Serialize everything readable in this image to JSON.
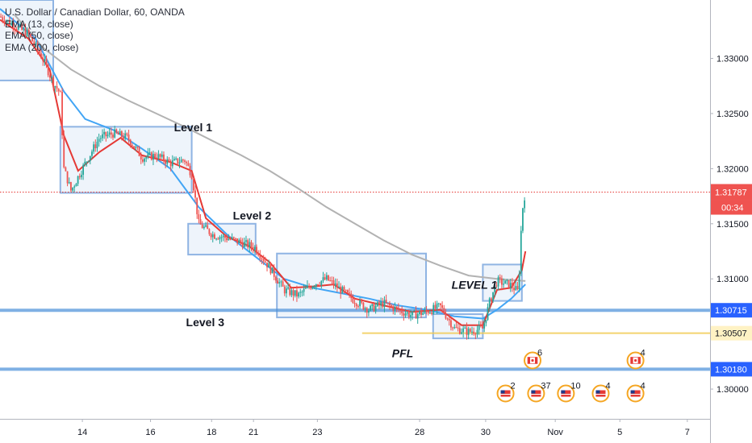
{
  "chart_data": {
    "type": "candlestick",
    "symbol_title": "U.S. Dollar / Canadian Dollar, 60, OANDA",
    "indicators": [
      "EMA (13, close)",
      "EMA (50, close)",
      "EMA (200, close)"
    ],
    "x_tick_labels": [
      "14",
      "16",
      "18",
      "21",
      "23",
      "28",
      "30",
      "Nov",
      "5",
      "7"
    ],
    "y_tick_labels": [
      "1.33000",
      "1.32500",
      "1.32000",
      "1.31500",
      "1.31000",
      "1.30000"
    ],
    "ylim": [
      1.2973,
      1.3353
    ],
    "current_price": {
      "value": 1.31787,
      "label": "1.31787",
      "countdown": "00:34"
    },
    "horizontal_levels": [
      {
        "value": 1.30715,
        "label": "1.30715",
        "color": "#4a90d9"
      },
      {
        "value": 1.30507,
        "label": "1.30507",
        "color": "#f2c94c"
      },
      {
        "value": 1.3018,
        "label": "1.30180",
        "color": "#4a90d9"
      }
    ],
    "annotations": [
      {
        "text": "Level 1",
        "style": "normal"
      },
      {
        "text": "Level 2",
        "style": "normal"
      },
      {
        "text": "Level 3",
        "style": "normal"
      },
      {
        "text": "PFL",
        "style": "italic"
      },
      {
        "text": "LEVEL 1",
        "style": "italic"
      }
    ],
    "event_badges": [
      {
        "count": "2",
        "country": "us"
      },
      {
        "count": "6",
        "country": "ca"
      },
      {
        "count": "37",
        "country": "us"
      },
      {
        "count": "10",
        "country": "us"
      },
      {
        "count": "4",
        "country": "us"
      },
      {
        "count": "4",
        "country": "ca"
      },
      {
        "count": "4",
        "country": "us"
      }
    ],
    "price_path": [
      [
        0.0,
        1.3338
      ],
      [
        0.02,
        1.333
      ],
      [
        0.04,
        1.3322
      ],
      [
        0.06,
        1.33
      ],
      [
        0.075,
        1.3278
      ],
      [
        0.085,
        1.3268
      ],
      [
        0.09,
        1.32
      ],
      [
        0.1,
        1.318
      ],
      [
        0.12,
        1.3205
      ],
      [
        0.14,
        1.3228
      ],
      [
        0.16,
        1.3232
      ],
      [
        0.18,
        1.3228
      ],
      [
        0.2,
        1.321
      ],
      [
        0.22,
        1.3212
      ],
      [
        0.24,
        1.3205
      ],
      [
        0.26,
        1.3208
      ],
      [
        0.27,
        1.3195
      ],
      [
        0.28,
        1.315
      ],
      [
        0.3,
        1.314
      ],
      [
        0.32,
        1.3137
      ],
      [
        0.34,
        1.3133
      ],
      [
        0.36,
        1.3128
      ],
      [
        0.38,
        1.311
      ],
      [
        0.4,
        1.309
      ],
      [
        0.42,
        1.3085
      ],
      [
        0.44,
        1.3095
      ],
      [
        0.46,
        1.31
      ],
      [
        0.48,
        1.309
      ],
      [
        0.5,
        1.308
      ],
      [
        0.52,
        1.3072
      ],
      [
        0.54,
        1.3078
      ],
      [
        0.56,
        1.3072
      ],
      [
        0.58,
        1.3067
      ],
      [
        0.6,
        1.307
      ],
      [
        0.62,
        1.3075
      ],
      [
        0.64,
        1.3055
      ],
      [
        0.66,
        1.3052
      ],
      [
        0.68,
        1.3055
      ],
      [
        0.69,
        1.308
      ],
      [
        0.7,
        1.3098
      ],
      [
        0.72,
        1.3094
      ],
      [
        0.73,
        1.3088
      ],
      [
        0.735,
        1.316
      ],
      [
        0.74,
        1.318
      ]
    ],
    "ema13": [
      [
        0.0,
        1.3335
      ],
      [
        0.04,
        1.3318
      ],
      [
        0.07,
        1.329
      ],
      [
        0.09,
        1.323
      ],
      [
        0.11,
        1.3198
      ],
      [
        0.14,
        1.3215
      ],
      [
        0.17,
        1.3228
      ],
      [
        0.2,
        1.3212
      ],
      [
        0.24,
        1.3206
      ],
      [
        0.27,
        1.3198
      ],
      [
        0.29,
        1.3155
      ],
      [
        0.32,
        1.3138
      ],
      [
        0.35,
        1.313
      ],
      [
        0.38,
        1.3115
      ],
      [
        0.41,
        1.3092
      ],
      [
        0.44,
        1.3093
      ],
      [
        0.47,
        1.3095
      ],
      [
        0.5,
        1.3082
      ],
      [
        0.54,
        1.3076
      ],
      [
        0.58,
        1.307
      ],
      [
        0.62,
        1.3072
      ],
      [
        0.65,
        1.3058
      ],
      [
        0.68,
        1.3058
      ],
      [
        0.7,
        1.309
      ],
      [
        0.72,
        1.3092
      ],
      [
        0.735,
        1.3108
      ],
      [
        0.74,
        1.3125
      ]
    ],
    "ema50": [
      [
        0.0,
        1.3345
      ],
      [
        0.05,
        1.3318
      ],
      [
        0.09,
        1.327
      ],
      [
        0.12,
        1.3245
      ],
      [
        0.16,
        1.3235
      ],
      [
        0.2,
        1.3218
      ],
      [
        0.24,
        1.32
      ],
      [
        0.28,
        1.3165
      ],
      [
        0.32,
        1.314
      ],
      [
        0.36,
        1.312
      ],
      [
        0.4,
        1.31
      ],
      [
        0.44,
        1.3092
      ],
      [
        0.48,
        1.3087
      ],
      [
        0.52,
        1.3082
      ],
      [
        0.56,
        1.3076
      ],
      [
        0.6,
        1.3072
      ],
      [
        0.64,
        1.3066
      ],
      [
        0.68,
        1.3064
      ],
      [
        0.7,
        1.3072
      ],
      [
        0.72,
        1.3082
      ],
      [
        0.74,
        1.3095
      ]
    ],
    "ema200": [
      [
        0.02,
        1.334
      ],
      [
        0.06,
        1.331
      ],
      [
        0.1,
        1.329
      ],
      [
        0.14,
        1.3275
      ],
      [
        0.18,
        1.3262
      ],
      [
        0.22,
        1.325
      ],
      [
        0.26,
        1.3238
      ],
      [
        0.3,
        1.3225
      ],
      [
        0.34,
        1.3212
      ],
      [
        0.38,
        1.3198
      ],
      [
        0.42,
        1.3182
      ],
      [
        0.46,
        1.3165
      ],
      [
        0.5,
        1.315
      ],
      [
        0.54,
        1.3135
      ],
      [
        0.58,
        1.3122
      ],
      [
        0.62,
        1.3112
      ],
      [
        0.66,
        1.3103
      ],
      [
        0.7,
        1.31
      ],
      [
        0.74,
        1.3098
      ]
    ],
    "zones": [
      {
        "x": [
          -0.01,
          0.075
        ],
        "y": [
          1.328,
          1.3353
        ]
      },
      {
        "x": [
          0.085,
          0.27
        ],
        "y": [
          1.3178,
          1.3238
        ]
      },
      {
        "x": [
          0.265,
          0.36
        ],
        "y": [
          1.3122,
          1.315
        ]
      },
      {
        "x": [
          0.39,
          0.6
        ],
        "y": [
          1.3065,
          1.3123
        ]
      },
      {
        "x": [
          0.61,
          0.68
        ],
        "y": [
          1.3046,
          1.3068
        ]
      },
      {
        "x": [
          0.68,
          0.735
        ],
        "y": [
          1.308,
          1.3113
        ]
      }
    ],
    "colors": {
      "up": "#26a69a",
      "down": "#ef5350",
      "ema13": "#e53935",
      "ema50": "#42a5f5",
      "ema200": "#b2b2b2",
      "price_line": "#e53935",
      "zone_border": "#8fb4e3",
      "zone_fill": "#eef4fb"
    }
  }
}
